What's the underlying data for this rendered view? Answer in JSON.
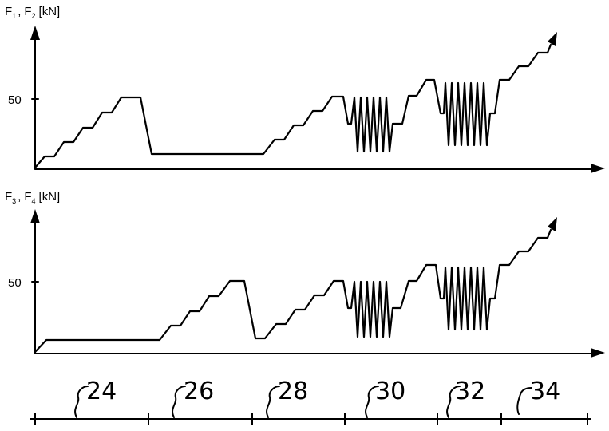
{
  "top_chart": {
    "axis_label_f": "F",
    "axis_label_sub1": "1",
    "axis_label_sep": ",",
    "axis_label_sub2": "2",
    "axis_label_unit": "[kN]",
    "tick_label": "50"
  },
  "bottom_chart": {
    "axis_label_f": "F",
    "axis_label_sub1": "3",
    "axis_label_sep": ",",
    "axis_label_sub2": "4",
    "axis_label_unit": "[kN]",
    "tick_label": "50"
  },
  "timeline": {
    "phases": [
      "24",
      "26",
      "28",
      "30",
      "32",
      "34"
    ]
  }
}
